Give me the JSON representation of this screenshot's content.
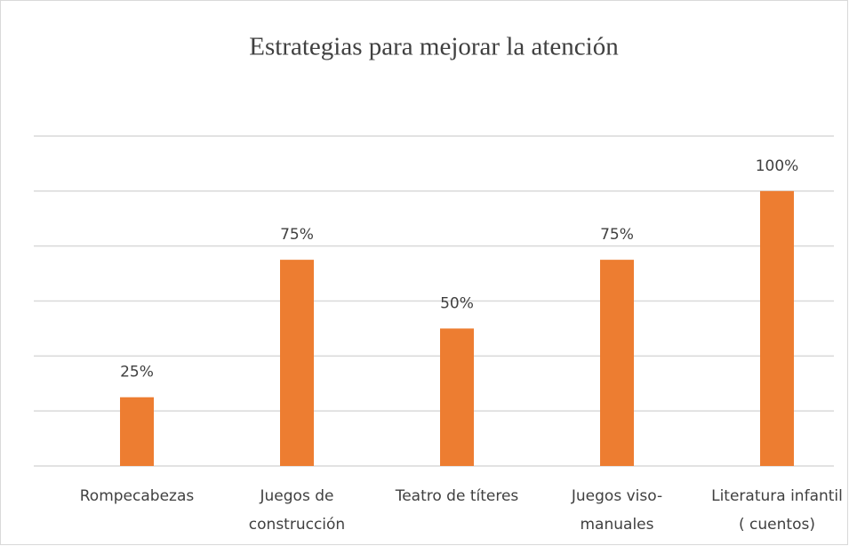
{
  "chart_data": {
    "type": "bar",
    "title": "Estrategias para mejorar la atención",
    "categories": [
      "Rompecabezas",
      "Juegos de\nconstrucción",
      "Teatro de títeres",
      "Juegos viso-\nmanuales",
      "Literatura infantil\n( cuentos)"
    ],
    "values": [
      25,
      75,
      50,
      75,
      100
    ],
    "value_labels": [
      "25%",
      "75%",
      "50%",
      "75%",
      "100%"
    ],
    "color": "#ed7d31",
    "ylim": [
      0,
      120
    ],
    "yticks": [
      0,
      20,
      40,
      60,
      80,
      100,
      120
    ],
    "ytick_labels": false,
    "grid": true
  }
}
